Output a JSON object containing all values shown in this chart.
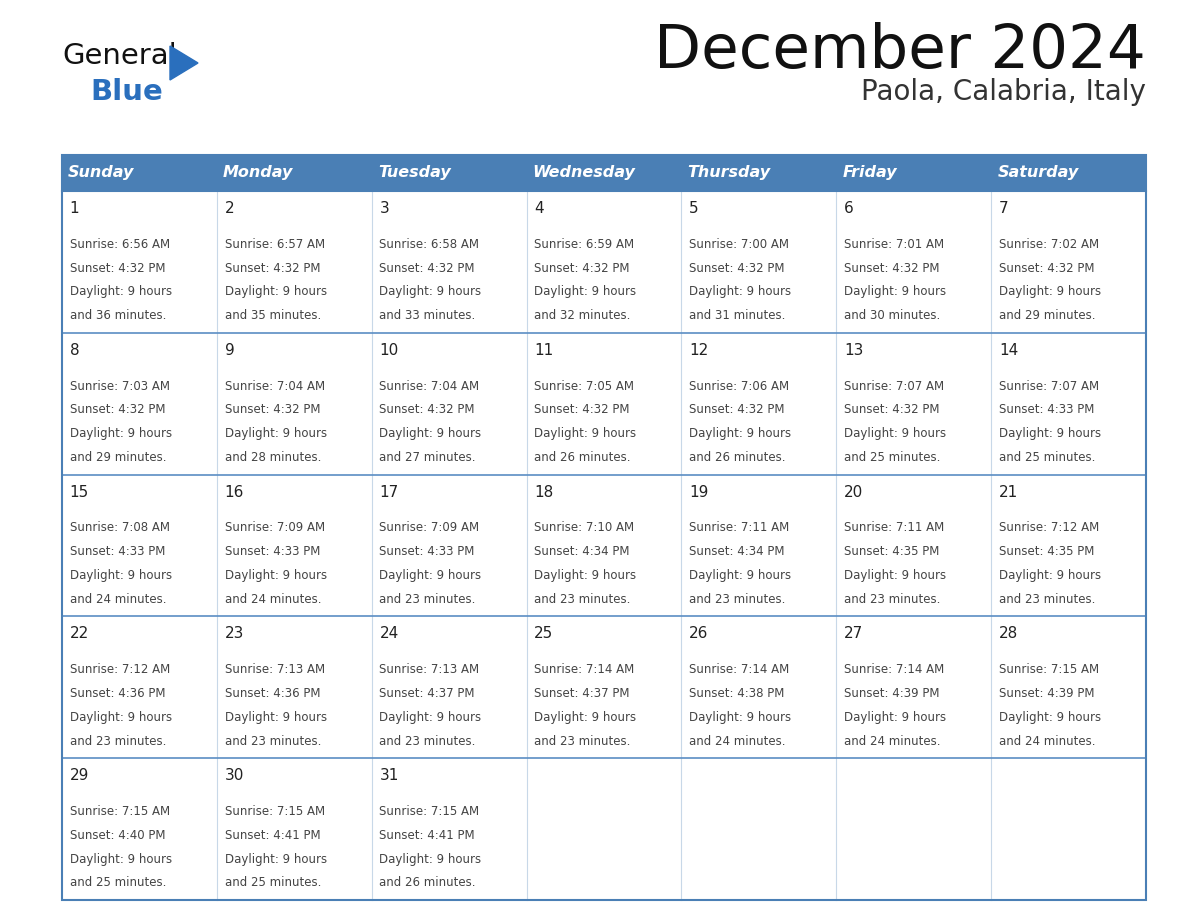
{
  "title": "December 2024",
  "subtitle": "Paola, Calabria, Italy",
  "header_bg": "#4a7fb5",
  "header_text_color": "#ffffff",
  "header_days": [
    "Sunday",
    "Monday",
    "Tuesday",
    "Wednesday",
    "Thursday",
    "Friday",
    "Saturday"
  ],
  "cell_bg": "#ffffff",
  "border_color": "#4a7fb5",
  "row_divider_color": "#5b8ec4",
  "col_divider_color": "#c8d8e8",
  "day_number_color": "#222222",
  "cell_text_color": "#444444",
  "title_color": "#111111",
  "subtitle_color": "#333333",
  "logo_general_color": "#111111",
  "logo_blue_color": "#2a6fbd",
  "weeks": [
    [
      {
        "day": 1,
        "sunrise": "6:56 AM",
        "sunset": "4:32 PM",
        "daylight": "9 hours",
        "daylight2": "and 36 minutes."
      },
      {
        "day": 2,
        "sunrise": "6:57 AM",
        "sunset": "4:32 PM",
        "daylight": "9 hours",
        "daylight2": "and 35 minutes."
      },
      {
        "day": 3,
        "sunrise": "6:58 AM",
        "sunset": "4:32 PM",
        "daylight": "9 hours",
        "daylight2": "and 33 minutes."
      },
      {
        "day": 4,
        "sunrise": "6:59 AM",
        "sunset": "4:32 PM",
        "daylight": "9 hours",
        "daylight2": "and 32 minutes."
      },
      {
        "day": 5,
        "sunrise": "7:00 AM",
        "sunset": "4:32 PM",
        "daylight": "9 hours",
        "daylight2": "and 31 minutes."
      },
      {
        "day": 6,
        "sunrise": "7:01 AM",
        "sunset": "4:32 PM",
        "daylight": "9 hours",
        "daylight2": "and 30 minutes."
      },
      {
        "day": 7,
        "sunrise": "7:02 AM",
        "sunset": "4:32 PM",
        "daylight": "9 hours",
        "daylight2": "and 29 minutes."
      }
    ],
    [
      {
        "day": 8,
        "sunrise": "7:03 AM",
        "sunset": "4:32 PM",
        "daylight": "9 hours",
        "daylight2": "and 29 minutes."
      },
      {
        "day": 9,
        "sunrise": "7:04 AM",
        "sunset": "4:32 PM",
        "daylight": "9 hours",
        "daylight2": "and 28 minutes."
      },
      {
        "day": 10,
        "sunrise": "7:04 AM",
        "sunset": "4:32 PM",
        "daylight": "9 hours",
        "daylight2": "and 27 minutes."
      },
      {
        "day": 11,
        "sunrise": "7:05 AM",
        "sunset": "4:32 PM",
        "daylight": "9 hours",
        "daylight2": "and 26 minutes."
      },
      {
        "day": 12,
        "sunrise": "7:06 AM",
        "sunset": "4:32 PM",
        "daylight": "9 hours",
        "daylight2": "and 26 minutes."
      },
      {
        "day": 13,
        "sunrise": "7:07 AM",
        "sunset": "4:32 PM",
        "daylight": "9 hours",
        "daylight2": "and 25 minutes."
      },
      {
        "day": 14,
        "sunrise": "7:07 AM",
        "sunset": "4:33 PM",
        "daylight": "9 hours",
        "daylight2": "and 25 minutes."
      }
    ],
    [
      {
        "day": 15,
        "sunrise": "7:08 AM",
        "sunset": "4:33 PM",
        "daylight": "9 hours",
        "daylight2": "and 24 minutes."
      },
      {
        "day": 16,
        "sunrise": "7:09 AM",
        "sunset": "4:33 PM",
        "daylight": "9 hours",
        "daylight2": "and 24 minutes."
      },
      {
        "day": 17,
        "sunrise": "7:09 AM",
        "sunset": "4:33 PM",
        "daylight": "9 hours",
        "daylight2": "and 23 minutes."
      },
      {
        "day": 18,
        "sunrise": "7:10 AM",
        "sunset": "4:34 PM",
        "daylight": "9 hours",
        "daylight2": "and 23 minutes."
      },
      {
        "day": 19,
        "sunrise": "7:11 AM",
        "sunset": "4:34 PM",
        "daylight": "9 hours",
        "daylight2": "and 23 minutes."
      },
      {
        "day": 20,
        "sunrise": "7:11 AM",
        "sunset": "4:35 PM",
        "daylight": "9 hours",
        "daylight2": "and 23 minutes."
      },
      {
        "day": 21,
        "sunrise": "7:12 AM",
        "sunset": "4:35 PM",
        "daylight": "9 hours",
        "daylight2": "and 23 minutes."
      }
    ],
    [
      {
        "day": 22,
        "sunrise": "7:12 AM",
        "sunset": "4:36 PM",
        "daylight": "9 hours",
        "daylight2": "and 23 minutes."
      },
      {
        "day": 23,
        "sunrise": "7:13 AM",
        "sunset": "4:36 PM",
        "daylight": "9 hours",
        "daylight2": "and 23 minutes."
      },
      {
        "day": 24,
        "sunrise": "7:13 AM",
        "sunset": "4:37 PM",
        "daylight": "9 hours",
        "daylight2": "and 23 minutes."
      },
      {
        "day": 25,
        "sunrise": "7:14 AM",
        "sunset": "4:37 PM",
        "daylight": "9 hours",
        "daylight2": "and 23 minutes."
      },
      {
        "day": 26,
        "sunrise": "7:14 AM",
        "sunset": "4:38 PM",
        "daylight": "9 hours",
        "daylight2": "and 24 minutes."
      },
      {
        "day": 27,
        "sunrise": "7:14 AM",
        "sunset": "4:39 PM",
        "daylight": "9 hours",
        "daylight2": "and 24 minutes."
      },
      {
        "day": 28,
        "sunrise": "7:15 AM",
        "sunset": "4:39 PM",
        "daylight": "9 hours",
        "daylight2": "and 24 minutes."
      }
    ],
    [
      {
        "day": 29,
        "sunrise": "7:15 AM",
        "sunset": "4:40 PM",
        "daylight": "9 hours",
        "daylight2": "and 25 minutes."
      },
      {
        "day": 30,
        "sunrise": "7:15 AM",
        "sunset": "4:41 PM",
        "daylight": "9 hours",
        "daylight2": "and 25 minutes."
      },
      {
        "day": 31,
        "sunrise": "7:15 AM",
        "sunset": "4:41 PM",
        "daylight": "9 hours",
        "daylight2": "and 26 minutes."
      },
      null,
      null,
      null,
      null
    ]
  ]
}
